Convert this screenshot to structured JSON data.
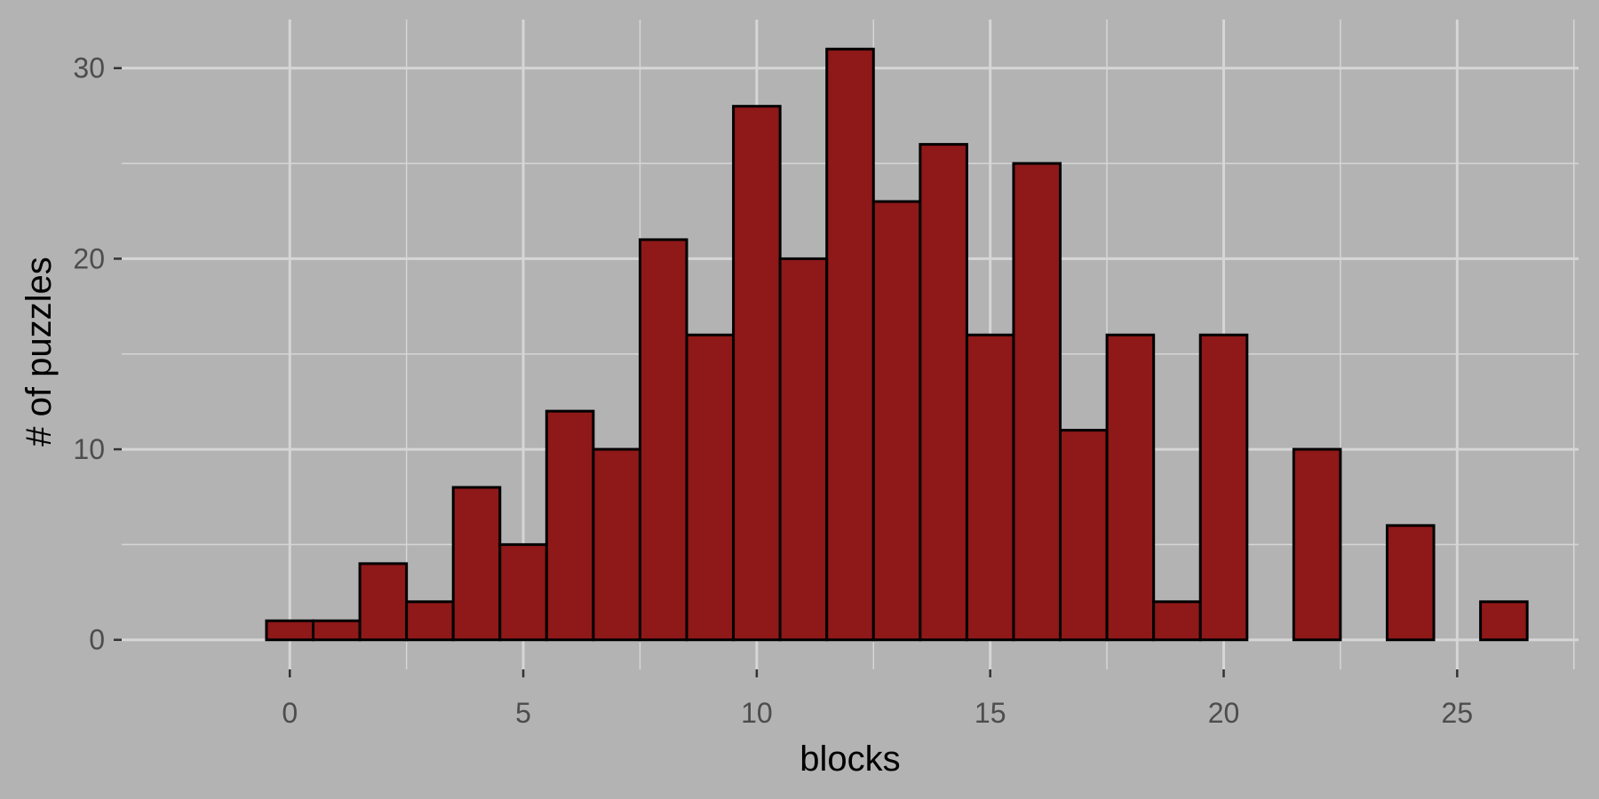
{
  "chart_data": {
    "type": "bar",
    "xlabel": "blocks",
    "ylabel": "# of puzzles",
    "x": [
      0,
      1,
      2,
      3,
      4,
      5,
      6,
      7,
      8,
      9,
      10,
      11,
      12,
      13,
      14,
      15,
      16,
      17,
      18,
      19,
      20,
      21,
      22,
      23,
      24,
      25,
      26
    ],
    "values": [
      1,
      1,
      4,
      2,
      8,
      5,
      12,
      10,
      21,
      16,
      28,
      20,
      31,
      23,
      26,
      16,
      25,
      11,
      16,
      2,
      16,
      0,
      10,
      0,
      6,
      0,
      2
    ],
    "bin_width": 1,
    "xlim": [
      -3.6,
      27.6
    ],
    "ylim": [
      -1.55,
      32.55
    ],
    "x_ticks": [
      0,
      5,
      10,
      15,
      20,
      25
    ],
    "y_ticks": [
      0,
      10,
      20,
      30
    ],
    "grid": true,
    "colors": {
      "background": "#b3b3b3",
      "grid": "#d6d6d6",
      "bar_fill": "#8f1818",
      "bar_border": "#000000",
      "tick_text": "#4d4d4d",
      "title_text": "#000000"
    }
  }
}
